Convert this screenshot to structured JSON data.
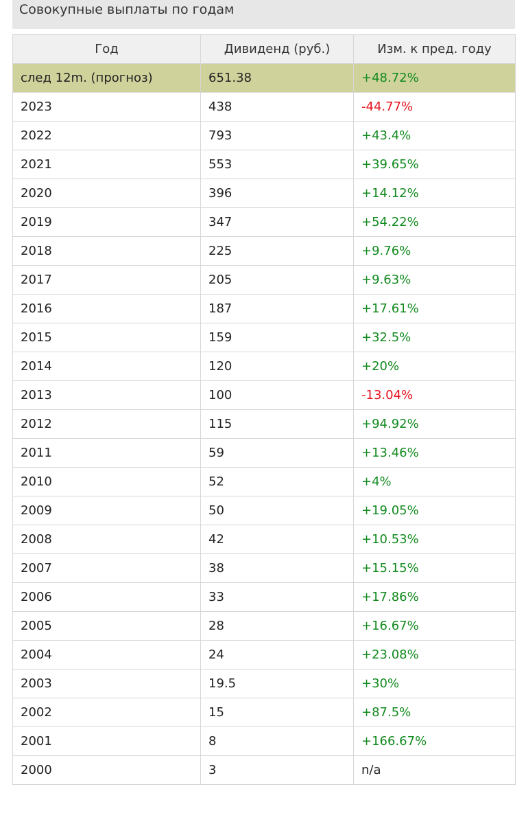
{
  "title": "Совокупные выплаты по годам",
  "table": {
    "headers": [
      "Год",
      "Дивиденд (руб.)",
      "Изм. к пред. году"
    ],
    "rows": [
      {
        "year": "след 12m. (прогноз)",
        "dividend": "651.38",
        "change": "+48.72%",
        "trend": "pos",
        "forecast": true
      },
      {
        "year": "2023",
        "dividend": "438",
        "change": "-44.77%",
        "trend": "neg"
      },
      {
        "year": "2022",
        "dividend": "793",
        "change": "+43.4%",
        "trend": "pos"
      },
      {
        "year": "2021",
        "dividend": "553",
        "change": "+39.65%",
        "trend": "pos"
      },
      {
        "year": "2020",
        "dividend": "396",
        "change": "+14.12%",
        "trend": "pos"
      },
      {
        "year": "2019",
        "dividend": "347",
        "change": "+54.22%",
        "trend": "pos"
      },
      {
        "year": "2018",
        "dividend": "225",
        "change": "+9.76%",
        "trend": "pos"
      },
      {
        "year": "2017",
        "dividend": "205",
        "change": "+9.63%",
        "trend": "pos"
      },
      {
        "year": "2016",
        "dividend": "187",
        "change": "+17.61%",
        "trend": "pos"
      },
      {
        "year": "2015",
        "dividend": "159",
        "change": "+32.5%",
        "trend": "pos"
      },
      {
        "year": "2014",
        "dividend": "120",
        "change": "+20%",
        "trend": "pos"
      },
      {
        "year": "2013",
        "dividend": "100",
        "change": "-13.04%",
        "trend": "neg"
      },
      {
        "year": "2012",
        "dividend": "115",
        "change": "+94.92%",
        "trend": "pos"
      },
      {
        "year": "2011",
        "dividend": "59",
        "change": "+13.46%",
        "trend": "pos"
      },
      {
        "year": "2010",
        "dividend": "52",
        "change": "+4%",
        "trend": "pos"
      },
      {
        "year": "2009",
        "dividend": "50",
        "change": "+19.05%",
        "trend": "pos"
      },
      {
        "year": "2008",
        "dividend": "42",
        "change": "+10.53%",
        "trend": "pos"
      },
      {
        "year": "2007",
        "dividend": "38",
        "change": "+15.15%",
        "trend": "pos"
      },
      {
        "year": "2006",
        "dividend": "33",
        "change": "+17.86%",
        "trend": "pos"
      },
      {
        "year": "2005",
        "dividend": "28",
        "change": "+16.67%",
        "trend": "pos"
      },
      {
        "year": "2004",
        "dividend": "24",
        "change": "+23.08%",
        "trend": "pos"
      },
      {
        "year": "2003",
        "dividend": "19.5",
        "change": "+30%",
        "trend": "pos"
      },
      {
        "year": "2002",
        "dividend": "15",
        "change": "+87.5%",
        "trend": "pos"
      },
      {
        "year": "2001",
        "dividend": "8",
        "change": "+166.67%",
        "trend": "pos"
      },
      {
        "year": "2000",
        "dividend": "3",
        "change": "n/a",
        "trend": "na"
      }
    ]
  },
  "colors": {
    "positive": "#118a1e",
    "negative": "#e6141e",
    "forecast_row": "#cfd29b",
    "title_bar": "#e7e7e7",
    "header_bg": "#f0f0f0"
  }
}
